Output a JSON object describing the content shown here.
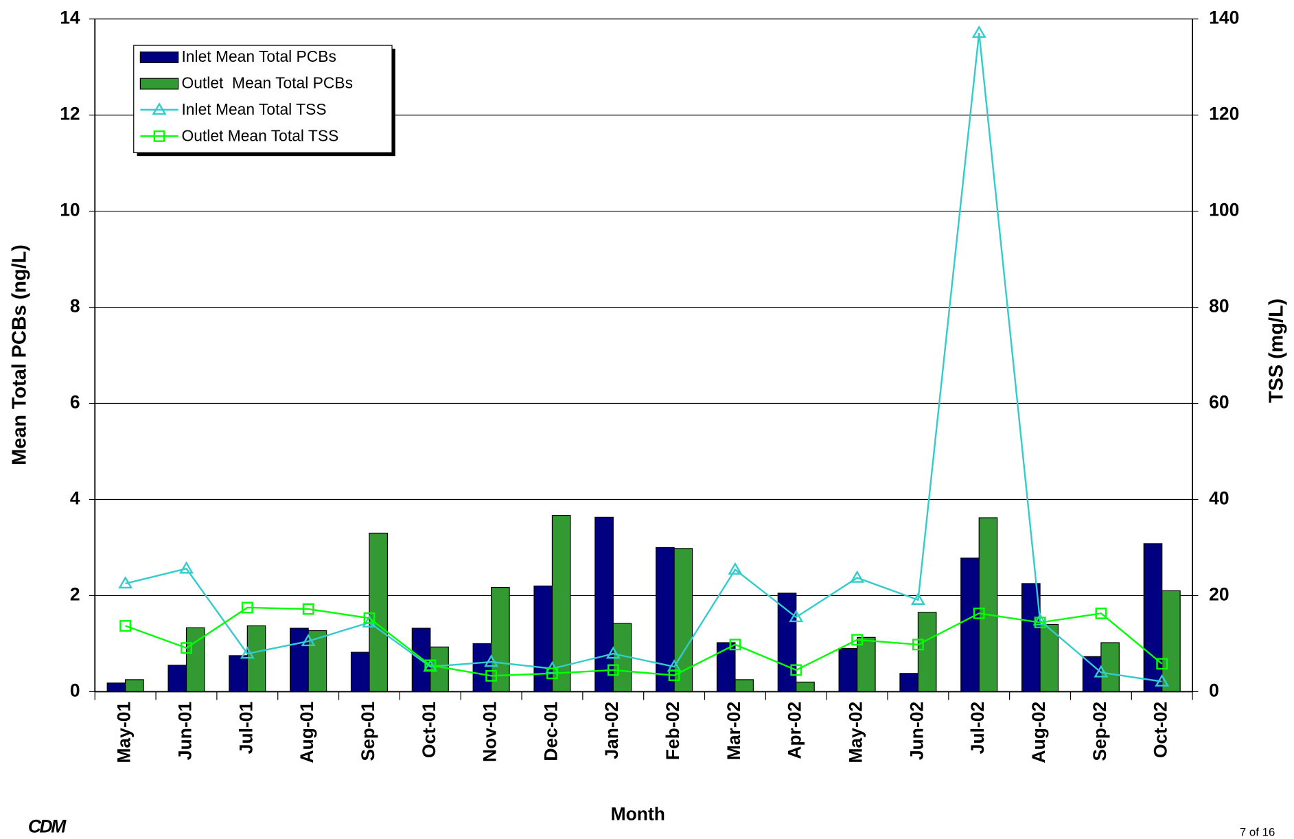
{
  "chart_data": {
    "type": "bar",
    "y_label": "Mean Total PCBs (ng/L)",
    "y2_label": "TSS (mg/L)",
    "x_label": "Month",
    "categories": [
      "May-01",
      "Jun-01",
      "Jul-01",
      "Aug-01",
      "Sep-01",
      "Oct-01",
      "Nov-01",
      "Dec-01",
      "Jan-02",
      "Feb-02",
      "Mar-02",
      "Apr-02",
      "May-02",
      "Jun-02",
      "Jul-02",
      "Aug-02",
      "Sep-02",
      "Oct-02"
    ],
    "series": [
      {
        "name": "Inlet Mean Total PCBs",
        "type": "bar",
        "color": "#000080",
        "values": [
          0.18,
          0.55,
          0.75,
          1.32,
          0.82,
          1.32,
          1.0,
          2.2,
          3.63,
          3.0,
          1.02,
          2.05,
          0.9,
          0.38,
          2.78,
          2.25,
          0.73,
          3.08
        ]
      },
      {
        "name": "Outlet  Mean Total PCBs",
        "type": "bar",
        "color": "#339933",
        "values": [
          0.25,
          1.33,
          1.37,
          1.27,
          3.3,
          0.93,
          2.17,
          3.67,
          1.42,
          2.98,
          0.25,
          0.2,
          1.13,
          1.65,
          3.62,
          1.4,
          1.02,
          2.1
        ]
      },
      {
        "name": "Inlet Mean Total TSS",
        "type": "line",
        "marker": "triangle",
        "axis": "y2",
        "color": "#33cccc",
        "values": [
          22.5,
          25.6,
          7.9,
          10.5,
          14.4,
          5.2,
          6.2,
          4.8,
          7.9,
          5.2,
          25.4,
          15.5,
          23.7,
          19.1,
          137.1,
          14.8,
          4.0,
          2.1
        ]
      },
      {
        "name": "Outlet Mean Total TSS",
        "type": "line",
        "marker": "square",
        "axis": "y2",
        "color": "#00ff00",
        "values": [
          13.7,
          9.1,
          17.5,
          17.2,
          15.3,
          5.5,
          3.3,
          3.8,
          4.5,
          3.4,
          9.8,
          4.5,
          10.8,
          9.8,
          16.3,
          14.4,
          16.3,
          5.8
        ]
      }
    ],
    "ylim": [
      0,
      14
    ],
    "yticks": [
      0,
      2,
      4,
      6,
      8,
      10,
      12,
      14
    ],
    "y2lim": [
      0,
      140
    ],
    "y2ticks": [
      0,
      20,
      40,
      60,
      80,
      100,
      120,
      140
    ],
    "grid": true,
    "legend": "upper left"
  },
  "footer": {
    "logo": "CDM",
    "page": "7 of 16"
  }
}
